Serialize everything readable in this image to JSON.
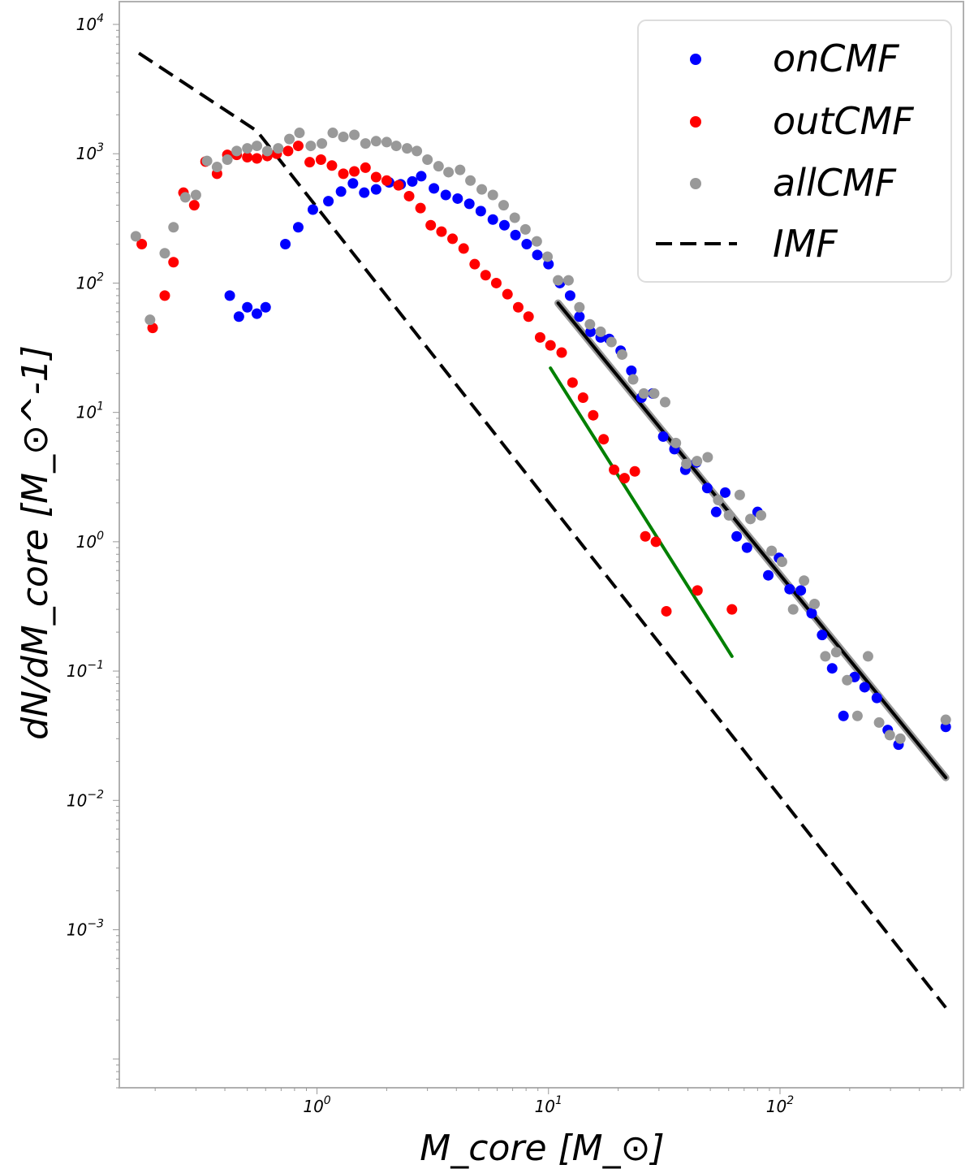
{
  "chart_data": {
    "type": "scatter",
    "title": "",
    "xlabel": "M_core [M_⊙]",
    "ylabel": "dN/dM_core [M_⊙^-1]",
    "xscale": "log",
    "yscale": "log",
    "xlim": [
      0.14,
      620
    ],
    "ylim": [
      6e-05,
      15000
    ],
    "x_ticks": [
      {
        "base": "10",
        "exp": "0",
        "value": 1
      },
      {
        "base": "10",
        "exp": "1",
        "value": 10
      },
      {
        "base": "10",
        "exp": "2",
        "value": 100
      }
    ],
    "y_ticks": [
      {
        "base": "10",
        "exp": "4",
        "value": 10000
      },
      {
        "base": "10",
        "exp": "3",
        "value": 1000
      },
      {
        "base": "10",
        "exp": "2",
        "value": 100
      },
      {
        "base": "10",
        "exp": "1",
        "value": 10
      },
      {
        "base": "10",
        "exp": "0",
        "value": 1
      },
      {
        "base": "10",
        "exp": "−1",
        "value": 0.1
      },
      {
        "base": "10",
        "exp": "−2",
        "value": 0.01
      },
      {
        "base": "10",
        "exp": "−3",
        "value": 0.001
      }
    ],
    "legend_position": "top-right",
    "series": [
      {
        "name": "onCMF",
        "color": "#0000ff",
        "kind": "scatter",
        "points": [
          [
            0.42,
            80
          ],
          [
            0.46,
            55
          ],
          [
            0.5,
            65
          ],
          [
            0.55,
            58
          ],
          [
            0.6,
            65
          ],
          [
            0.73,
            200
          ],
          [
            0.83,
            270
          ],
          [
            0.96,
            370
          ],
          [
            1.12,
            430
          ],
          [
            1.27,
            510
          ],
          [
            1.43,
            590
          ],
          [
            1.6,
            500
          ],
          [
            1.8,
            530
          ],
          [
            2.05,
            600
          ],
          [
            2.3,
            580
          ],
          [
            2.58,
            610
          ],
          [
            2.82,
            670
          ],
          [
            3.2,
            540
          ],
          [
            3.6,
            480
          ],
          [
            4.05,
            450
          ],
          [
            4.55,
            410
          ],
          [
            5.1,
            360
          ],
          [
            5.75,
            310
          ],
          [
            6.45,
            280
          ],
          [
            7.2,
            235
          ],
          [
            8.05,
            200
          ],
          [
            8.95,
            165
          ],
          [
            10.0,
            140
          ],
          [
            11.2,
            100
          ],
          [
            12.4,
            80
          ],
          [
            13.6,
            55
          ],
          [
            15.2,
            42
          ],
          [
            16.8,
            38
          ],
          [
            18.3,
            37
          ],
          [
            20.5,
            30
          ],
          [
            22.8,
            21
          ],
          [
            25.2,
            13
          ],
          [
            28.2,
            14
          ],
          [
            31.3,
            6.5
          ],
          [
            35.0,
            5.2
          ],
          [
            39.0,
            3.6
          ],
          [
            43.5,
            4.1
          ],
          [
            48.5,
            2.6
          ],
          [
            53.0,
            1.7
          ],
          [
            58.0,
            2.4
          ],
          [
            65.0,
            1.1
          ],
          [
            72.0,
            0.9
          ],
          [
            80.0,
            1.7
          ],
          [
            89.0,
            0.55
          ],
          [
            99.0,
            0.75
          ],
          [
            110.0,
            0.43
          ],
          [
            123.0,
            0.42
          ],
          [
            137.0,
            0.28
          ],
          [
            152.0,
            0.19
          ],
          [
            168.0,
            0.105
          ],
          [
            188.0,
            0.045
          ],
          [
            210.0,
            0.09
          ],
          [
            232.0,
            0.075
          ],
          [
            262.0,
            0.062
          ],
          [
            292.0,
            0.035
          ],
          [
            325.0,
            0.027
          ],
          [
            520.0,
            0.037
          ]
        ]
      },
      {
        "name": "outCMF",
        "color": "#ff0000",
        "kind": "scatter",
        "points": [
          [
            0.175,
            200
          ],
          [
            0.195,
            45
          ],
          [
            0.22,
            80
          ],
          [
            0.24,
            145
          ],
          [
            0.265,
            500
          ],
          [
            0.295,
            400
          ],
          [
            0.33,
            870
          ],
          [
            0.37,
            700
          ],
          [
            0.41,
            980
          ],
          [
            0.45,
            980
          ],
          [
            0.5,
            940
          ],
          [
            0.55,
            920
          ],
          [
            0.61,
            960
          ],
          [
            0.67,
            1000
          ],
          [
            0.75,
            1050
          ],
          [
            0.83,
            1150
          ],
          [
            0.93,
            860
          ],
          [
            1.04,
            900
          ],
          [
            1.16,
            810
          ],
          [
            1.3,
            700
          ],
          [
            1.45,
            730
          ],
          [
            1.62,
            780
          ],
          [
            1.8,
            660
          ],
          [
            2.0,
            620
          ],
          [
            2.25,
            570
          ],
          [
            2.5,
            470
          ],
          [
            2.8,
            380
          ],
          [
            3.1,
            280
          ],
          [
            3.45,
            250
          ],
          [
            3.85,
            220
          ],
          [
            4.3,
            185
          ],
          [
            4.8,
            140
          ],
          [
            5.35,
            115
          ],
          [
            5.95,
            100
          ],
          [
            6.65,
            82
          ],
          [
            7.4,
            65
          ],
          [
            8.2,
            55
          ],
          [
            9.2,
            38
          ],
          [
            10.2,
            33
          ],
          [
            11.4,
            29
          ],
          [
            12.7,
            17
          ],
          [
            14.1,
            13
          ],
          [
            15.6,
            9.5
          ],
          [
            17.3,
            6.2
          ],
          [
            19.2,
            3.6
          ],
          [
            21.3,
            3.1
          ],
          [
            23.6,
            3.5
          ],
          [
            26.2,
            1.1
          ],
          [
            29.1,
            1.0
          ],
          [
            32.3,
            0.29
          ],
          [
            44.0,
            0.42
          ],
          [
            62.0,
            0.3
          ]
        ]
      },
      {
        "name": "allCMF",
        "color": "#999999",
        "kind": "scatter",
        "points": [
          [
            0.165,
            230
          ],
          [
            0.19,
            52
          ],
          [
            0.22,
            170
          ],
          [
            0.24,
            270
          ],
          [
            0.27,
            460
          ],
          [
            0.3,
            480
          ],
          [
            0.335,
            880
          ],
          [
            0.37,
            790
          ],
          [
            0.41,
            900
          ],
          [
            0.45,
            1050
          ],
          [
            0.5,
            1100
          ],
          [
            0.55,
            1150
          ],
          [
            0.61,
            1050
          ],
          [
            0.68,
            1100
          ],
          [
            0.76,
            1300
          ],
          [
            0.84,
            1450
          ],
          [
            0.94,
            1150
          ],
          [
            1.05,
            1200
          ],
          [
            1.17,
            1450
          ],
          [
            1.3,
            1350
          ],
          [
            1.45,
            1400
          ],
          [
            1.62,
            1200
          ],
          [
            1.8,
            1250
          ],
          [
            2.0,
            1230
          ],
          [
            2.2,
            1150
          ],
          [
            2.45,
            1100
          ],
          [
            2.7,
            1050
          ],
          [
            3.0,
            900
          ],
          [
            3.35,
            800
          ],
          [
            3.7,
            720
          ],
          [
            4.15,
            750
          ],
          [
            4.6,
            620
          ],
          [
            5.15,
            530
          ],
          [
            5.75,
            480
          ],
          [
            6.4,
            400
          ],
          [
            7.15,
            320
          ],
          [
            7.95,
            260
          ],
          [
            8.9,
            210
          ],
          [
            9.9,
            160
          ],
          [
            11.0,
            105
          ],
          [
            12.2,
            105
          ],
          [
            13.6,
            65
          ],
          [
            15.1,
            48
          ],
          [
            16.8,
            42
          ],
          [
            18.7,
            35
          ],
          [
            20.8,
            28
          ],
          [
            23.2,
            18
          ],
          [
            25.8,
            14
          ],
          [
            28.6,
            14
          ],
          [
            31.9,
            12
          ],
          [
            35.5,
            5.8
          ],
          [
            39.4,
            4.0
          ],
          [
            43.8,
            4.2
          ],
          [
            48.7,
            4.5
          ],
          [
            54.1,
            2.1
          ],
          [
            60.2,
            1.6
          ],
          [
            67.0,
            2.3
          ],
          [
            74.5,
            1.5
          ],
          [
            82.8,
            1.6
          ],
          [
            92.0,
            0.85
          ],
          [
            102.0,
            0.7
          ],
          [
            114.0,
            0.3
          ],
          [
            127.0,
            0.5
          ],
          [
            141.0,
            0.33
          ],
          [
            157.0,
            0.13
          ],
          [
            175.0,
            0.14
          ],
          [
            195.0,
            0.085
          ],
          [
            216.0,
            0.045
          ],
          [
            240.0,
            0.13
          ],
          [
            268.0,
            0.04
          ],
          [
            298.0,
            0.032
          ],
          [
            331.0,
            0.03
          ],
          [
            520.0,
            0.042
          ]
        ]
      },
      {
        "name": "IMF",
        "color": "#000000",
        "kind": "dashed-line",
        "points": [
          [
            0.17,
            6000
          ],
          [
            0.55,
            1500
          ],
          [
            520.0,
            0.00025
          ]
        ]
      },
      {
        "name": "fit-all",
        "color": "#000000",
        "kind": "line",
        "points": [
          [
            11.0,
            70
          ],
          [
            520.0,
            0.015
          ]
        ]
      },
      {
        "name": "fit-out",
        "color": "#008000",
        "kind": "line",
        "points": [
          [
            10.2,
            22
          ],
          [
            62.0,
            0.13
          ]
        ]
      }
    ],
    "legend": [
      "onCMF",
      "outCMF",
      "allCMF",
      "IMF"
    ]
  }
}
